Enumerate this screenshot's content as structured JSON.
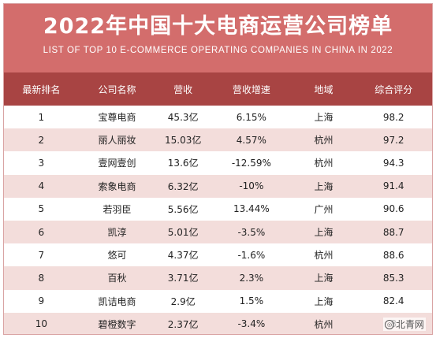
{
  "header": {
    "title": "2022年中国十大电商运营公司榜单",
    "subtitle": "LIST OF TOP 10 E-COMMERCE OPERATING COMPANIES IN CHINA IN 2022"
  },
  "table": {
    "columns": [
      "最新排名",
      "公司名称",
      "营收",
      "营收增速",
      "地域",
      "综合评分"
    ],
    "rows": [
      [
        "1",
        "宝尊电商",
        "45.3亿",
        "6.15%",
        "上海",
        "98.2"
      ],
      [
        "2",
        "丽人丽妆",
        "15.03亿",
        "4.57%",
        "杭州",
        "97.2"
      ],
      [
        "3",
        "壹网壹创",
        "13.6亿",
        "-12.59%",
        "杭州",
        "94.3"
      ],
      [
        "4",
        "索象电商",
        "6.32亿",
        "-10%",
        "上海",
        "91.4"
      ],
      [
        "5",
        "若羽臣",
        "5.56亿",
        "13.44%",
        "广州",
        "90.6"
      ],
      [
        "6",
        "凯淳",
        "5.01亿",
        "-3.5%",
        "上海",
        "88.7"
      ],
      [
        "7",
        "悠可",
        "4.37亿",
        "-1.6%",
        "杭州",
        "88.6"
      ],
      [
        "8",
        "百秋",
        "3.71亿",
        "2.3%",
        "上海",
        "85.3"
      ],
      [
        "9",
        "凯诘电商",
        "2.9亿",
        "1.5%",
        "上海",
        "82.4"
      ],
      [
        "10",
        "碧橙数字",
        "2.37亿",
        "-3.4%",
        "杭州",
        "8"
      ]
    ]
  },
  "watermark": {
    "icon": "search-icon",
    "text": "北青网"
  },
  "colors": {
    "header": "#d36d6c",
    "thead": "#a84443",
    "stripe": "#f3dddb"
  }
}
